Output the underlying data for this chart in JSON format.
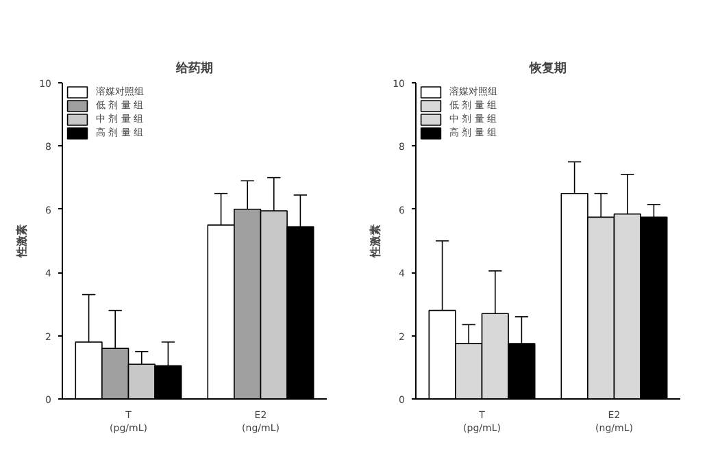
{
  "chart_data": [
    {
      "type": "bar",
      "title": "给药期",
      "ylabel": "性激素",
      "categories": [
        "T\n(pg/mL)",
        "E2\n(ng/mL)"
      ],
      "ylim": [
        0,
        10
      ],
      "yticks": [
        0,
        2,
        4,
        6,
        8,
        10
      ],
      "grid": false,
      "legend": "top left",
      "series": [
        {
          "name": "溶媒对照组",
          "color": "#ffffff",
          "values": [
            1.8,
            5.5
          ],
          "errors": [
            [
              1.8,
              3.3
            ],
            [
              5.5,
              6.5
            ]
          ]
        },
        {
          "name": "低 剂 量 组",
          "color": "#a0a0a0",
          "values": [
            1.6,
            6.0
          ],
          "errors": [
            [
              1.6,
              2.8
            ],
            [
              6.0,
              6.9
            ]
          ]
        },
        {
          "name": "中 剂 量 组",
          "color": "#c8c8c8",
          "values": [
            1.1,
            5.95
          ],
          "errors": [
            [
              1.1,
              1.5
            ],
            [
              5.95,
              7.0
            ]
          ]
        },
        {
          "name": "高 剂 量 组",
          "color": "#000000",
          "values": [
            1.05,
            5.45
          ],
          "errors": [
            [
              1.05,
              1.8
            ],
            [
              5.45,
              6.45
            ]
          ]
        }
      ]
    },
    {
      "type": "bar",
      "title": "恢复期",
      "ylabel": "性激素",
      "categories": [
        "T\n(pg/mL)",
        "E2\n(ng/mL)"
      ],
      "ylim": [
        0,
        10
      ],
      "yticks": [
        0,
        2,
        4,
        6,
        8,
        10
      ],
      "grid": false,
      "legend": "top left",
      "series": [
        {
          "name": "溶媒对照组",
          "color": "#ffffff",
          "values": [
            2.8,
            6.5
          ],
          "errors": [
            [
              2.8,
              5.0
            ],
            [
              6.5,
              7.5
            ]
          ]
        },
        {
          "name": "低 剂 量 组",
          "color": "#d8d8d8",
          "values": [
            1.75,
            5.75
          ],
          "errors": [
            [
              1.75,
              2.35
            ],
            [
              5.75,
              6.5
            ]
          ]
        },
        {
          "name": "中 剂 量 组",
          "color": "#d8d8d8",
          "values": [
            2.7,
            5.85
          ],
          "errors": [
            [
              2.7,
              4.05
            ],
            [
              5.85,
              7.1
            ]
          ]
        },
        {
          "name": "高 剂 量 组",
          "color": "#000000",
          "values": [
            1.75,
            5.75
          ],
          "errors": [
            [
              1.75,
              2.6
            ],
            [
              5.75,
              6.15
            ]
          ]
        }
      ]
    }
  ]
}
